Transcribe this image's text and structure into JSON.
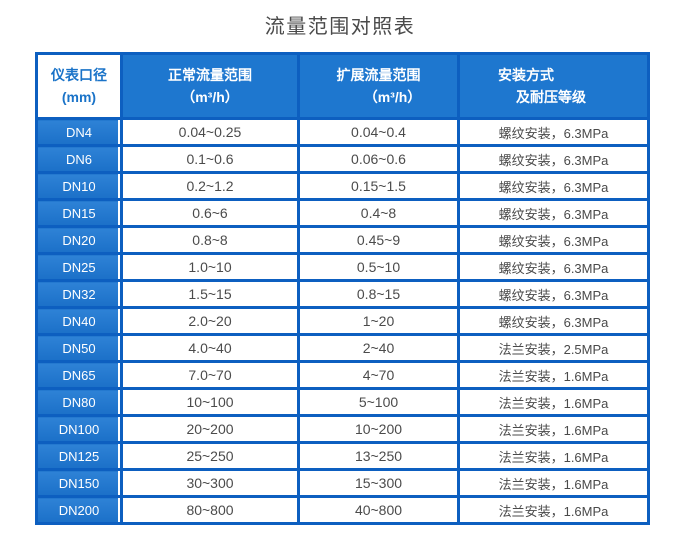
{
  "page_title": "流量范围对照表",
  "colors": {
    "header_blue": "#1e77cf",
    "header_blue_light": "#2e82d6",
    "border_blue": "#0d5fc0",
    "first_header_text_blue": "#1a73c8",
    "data_text": "#4b4b4b",
    "title_text": "#4a4a4a"
  },
  "chart_data": {
    "type": "table",
    "title": "流量范围对照表",
    "columns": [
      {
        "line1": "仪表口径",
        "line2": "(mm)"
      },
      {
        "line1": "正常流量范围",
        "line2": "（m³/h）"
      },
      {
        "line1": "扩展流量范围",
        "line2": "（m³/h）"
      },
      {
        "line1": "安装方式",
        "line2": "及耐压等级"
      }
    ],
    "rows": [
      [
        "DN4",
        "0.04~0.25",
        "0.04~0.4",
        "螺纹安装，6.3MPa"
      ],
      [
        "DN6",
        "0.1~0.6",
        "0.06~0.6",
        "螺纹安装，6.3MPa"
      ],
      [
        "DN10",
        "0.2~1.2",
        "0.15~1.5",
        "螺纹安装，6.3MPa"
      ],
      [
        "DN15",
        "0.6~6",
        "0.4~8",
        "螺纹安装，6.3MPa"
      ],
      [
        "DN20",
        "0.8~8",
        "0.45~9",
        "螺纹安装，6.3MPa"
      ],
      [
        "DN25",
        "1.0~10",
        "0.5~10",
        "螺纹安装，6.3MPa"
      ],
      [
        "DN32",
        "1.5~15",
        "0.8~15",
        "螺纹安装，6.3MPa"
      ],
      [
        "DN40",
        "2.0~20",
        "1~20",
        "螺纹安装，6.3MPa"
      ],
      [
        "DN50",
        "4.0~40",
        "2~40",
        "法兰安装，2.5MPa"
      ],
      [
        "DN65",
        "7.0~70",
        "4~70",
        "法兰安装，1.6MPa"
      ],
      [
        "DN80",
        "10~100",
        "5~100",
        "法兰安装，1.6MPa"
      ],
      [
        "DN100",
        "20~200",
        "10~200",
        "法兰安装，1.6MPa"
      ],
      [
        "DN125",
        "25~250",
        "13~250",
        "法兰安装，1.6MPa"
      ],
      [
        "DN150",
        "30~300",
        "15~300",
        "法兰安装，1.6MPa"
      ],
      [
        "DN200",
        "80~800",
        "40~800",
        "法兰安装，1.6MPa"
      ]
    ]
  }
}
